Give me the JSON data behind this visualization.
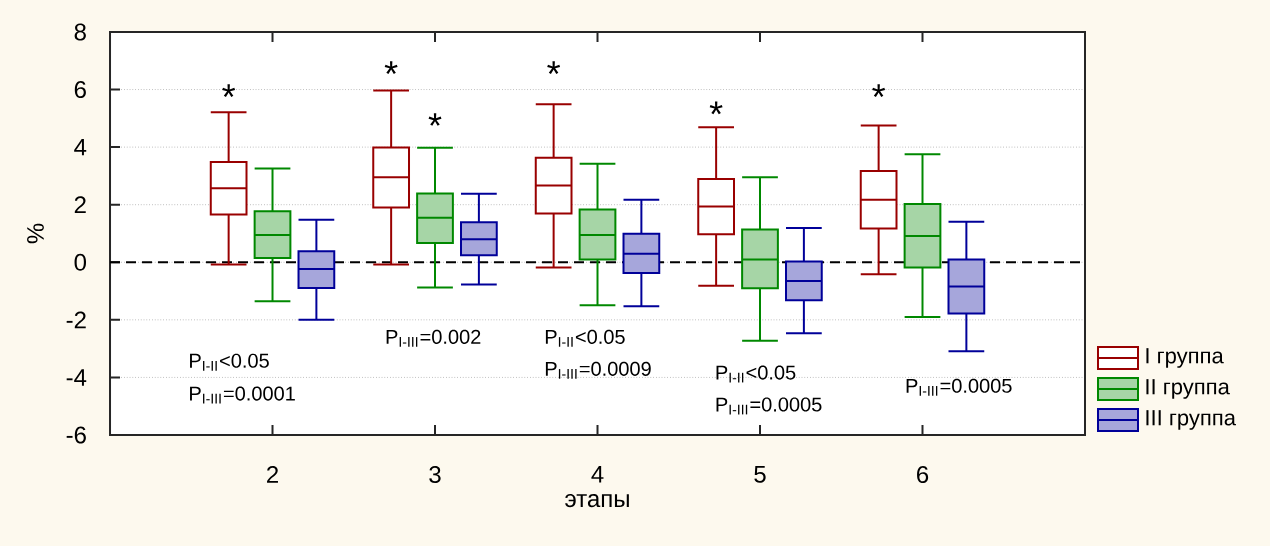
{
  "chart_data": {
    "type": "box",
    "xlabel": "этапы",
    "ylabel": "%",
    "categories": [
      "2",
      "3",
      "4",
      "5",
      "6"
    ],
    "ylim": [
      -6,
      8
    ],
    "yticks": [
      -6,
      -4,
      -2,
      0,
      2,
      4,
      6,
      8
    ],
    "grid": "y",
    "legend": "bottom right",
    "series": [
      {
        "name": "I группа",
        "color": "#990000",
        "boxes": [
          {
            "low": -0.08,
            "q1": 1.66,
            "median": 2.57,
            "q3": 3.48,
            "high": 5.21
          },
          {
            "low": -0.08,
            "q1": 1.9,
            "median": 2.95,
            "q3": 3.99,
            "high": 5.97
          },
          {
            "low": -0.18,
            "q1": 1.69,
            "median": 2.67,
            "q3": 3.63,
            "high": 5.49
          },
          {
            "low": -0.82,
            "q1": 0.97,
            "median": 1.94,
            "q3": 2.89,
            "high": 4.69
          },
          {
            "low": -0.42,
            "q1": 1.17,
            "median": 2.17,
            "q3": 3.17,
            "high": 4.75
          }
        ]
      },
      {
        "name": "II группа",
        "color": "#008800",
        "boxes": [
          {
            "low": -1.35,
            "q1": 0.15,
            "median": 0.95,
            "q3": 1.77,
            "high": 3.26
          },
          {
            "low": -0.88,
            "q1": 0.67,
            "median": 1.55,
            "q3": 2.39,
            "high": 3.98
          },
          {
            "low": -1.49,
            "q1": 0.1,
            "median": 0.95,
            "q3": 1.83,
            "high": 3.42
          },
          {
            "low": -2.73,
            "q1": -0.9,
            "median": 0.1,
            "q3": 1.14,
            "high": 2.95
          },
          {
            "low": -1.9,
            "q1": -0.18,
            "median": 0.91,
            "q3": 2.02,
            "high": 3.75
          }
        ]
      },
      {
        "name": "III группа",
        "color": "#000099",
        "boxes": [
          {
            "low": -2.0,
            "q1": -0.89,
            "median": -0.23,
            "q3": 0.38,
            "high": 1.48
          },
          {
            "low": -0.77,
            "q1": 0.24,
            "median": 0.8,
            "q3": 1.39,
            "high": 2.38
          },
          {
            "low": -1.53,
            "q1": -0.37,
            "median": 0.3,
            "q3": 0.99,
            "high": 2.17
          },
          {
            "low": -2.47,
            "q1": -1.32,
            "median": -0.65,
            "q3": 0.03,
            "high": 1.19
          },
          {
            "low": -3.09,
            "q1": -1.78,
            "median": -0.84,
            "q3": 0.1,
            "high": 1.41
          }
        ]
      }
    ],
    "ref_lines": [
      {
        "axis": "y",
        "value": 0,
        "color": "#000000",
        "line_style": "dashed"
      }
    ],
    "annotations": [
      "P$_{I-II}$<0.05",
      "P$_{I-III}$=0.0001",
      "P$_{I-III}$=0.002",
      "P$_{I-II}$<0.05",
      "P$_{I-III}$=0.0009",
      "P$_{I-II}$<0.05",
      "P$_{I-III}$=0.0005",
      "P$_{I-III}$=0.0005",
      "*",
      "*",
      "*",
      "*",
      "*",
      "*"
    ]
  }
}
